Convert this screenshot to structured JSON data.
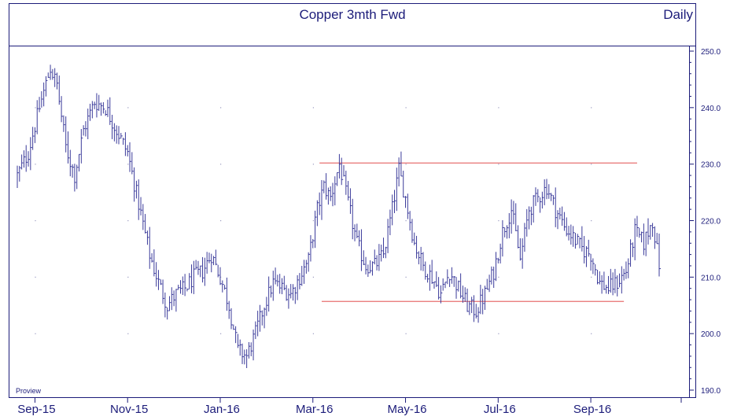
{
  "chart_data": {
    "type": "ohlc-bar",
    "title": "Copper 3mth Fwd",
    "frequency_label": "Daily",
    "watermark": "Proview",
    "ylim": [
      190,
      250
    ],
    "y_ticks": [
      "250.0",
      "240.0",
      "230.0",
      "220.0",
      "210.0",
      "200.0",
      "190.0"
    ],
    "y_tick_values": [
      250,
      240,
      230,
      220,
      210,
      200,
      190
    ],
    "x_ticks": [
      "Sep-15",
      "Nov-15",
      "Jan-16",
      "Mar-16",
      "May-16",
      "Jul-16",
      "Sep-16"
    ],
    "x_tick_index": [
      8,
      50,
      92,
      134,
      176,
      218,
      260
    ],
    "n_bars": 292,
    "grid": true,
    "bar_color": "#3a3a9a",
    "frame_color": "#1c1c7a",
    "level_line_color": "#e87070",
    "horizontal_lines": [
      {
        "value": 230.2,
        "from_index": 137,
        "to_index": 281
      },
      {
        "value": 205.7,
        "from_index": 138,
        "to_index": 275
      }
    ],
    "close_anchors": [
      [
        0,
        228
      ],
      [
        5,
        232
      ],
      [
        10,
        240
      ],
      [
        15,
        247
      ],
      [
        18,
        244
      ],
      [
        22,
        233
      ],
      [
        26,
        228
      ],
      [
        30,
        236
      ],
      [
        35,
        241
      ],
      [
        40,
        240
      ],
      [
        45,
        236
      ],
      [
        50,
        232
      ],
      [
        55,
        223
      ],
      [
        60,
        214
      ],
      [
        64,
        209
      ],
      [
        68,
        205
      ],
      [
        72,
        207
      ],
      [
        76,
        208
      ],
      [
        80,
        210
      ],
      [
        84,
        211
      ],
      [
        88,
        214
      ],
      [
        92,
        210
      ],
      [
        96,
        205
      ],
      [
        100,
        197
      ],
      [
        104,
        196
      ],
      [
        108,
        200
      ],
      [
        112,
        205
      ],
      [
        116,
        209
      ],
      [
        120,
        208
      ],
      [
        124,
        207
      ],
      [
        128,
        210
      ],
      [
        132,
        213
      ],
      [
        136,
        222
      ],
      [
        139,
        226
      ],
      [
        142,
        224
      ],
      [
        146,
        230
      ],
      [
        150,
        223
      ],
      [
        154,
        216
      ],
      [
        158,
        212
      ],
      [
        162,
        212
      ],
      [
        166,
        214
      ],
      [
        170,
        222
      ],
      [
        173,
        229
      ],
      [
        176,
        224
      ],
      [
        180,
        216
      ],
      [
        184,
        212
      ],
      [
        188,
        210
      ],
      [
        192,
        207
      ],
      [
        196,
        211
      ],
      [
        200,
        208
      ],
      [
        204,
        205
      ],
      [
        208,
        204
      ],
      [
        212,
        207
      ],
      [
        216,
        211
      ],
      [
        220,
        218
      ],
      [
        224,
        222
      ],
      [
        228,
        213
      ],
      [
        232,
        222
      ],
      [
        236,
        224
      ],
      [
        240,
        226
      ],
      [
        244,
        222
      ],
      [
        248,
        219
      ],
      [
        252,
        217
      ],
      [
        256,
        215
      ],
      [
        260,
        214
      ],
      [
        264,
        209
      ],
      [
        268,
        208
      ],
      [
        272,
        209
      ],
      [
        276,
        211
      ],
      [
        280,
        218
      ],
      [
        284,
        216
      ],
      [
        288,
        220
      ],
      [
        291,
        212
      ]
    ],
    "last_close": 211.5
  }
}
